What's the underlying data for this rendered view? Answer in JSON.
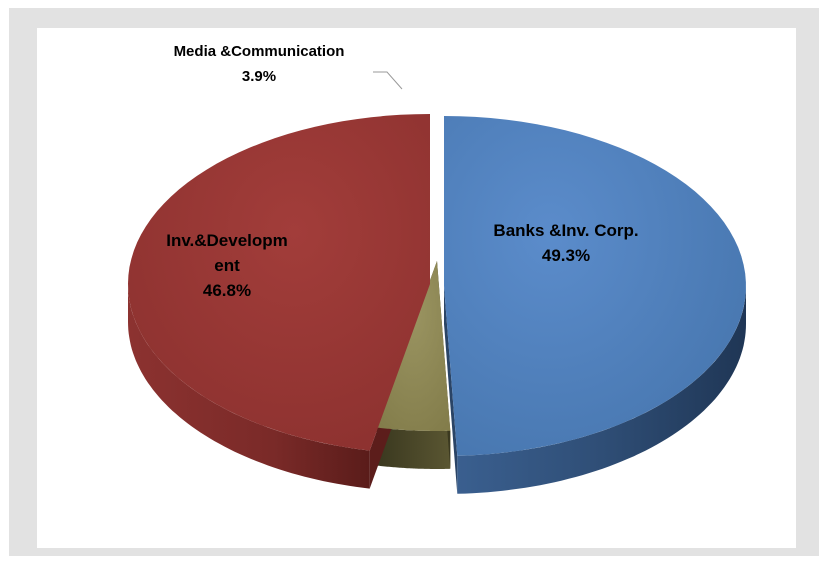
{
  "chart_data": {
    "type": "pie",
    "style": "3d-exploded",
    "title": "",
    "slices": [
      {
        "label": "Banks &Inv. Corp.",
        "value": 49.3,
        "display": "49.3%",
        "color": "#4f81bd"
      },
      {
        "label": "Media &Communication",
        "value": 3.9,
        "display": "3.9%",
        "color": "#8c8651"
      },
      {
        "label": "Inv.&Development",
        "label_lines": [
          "Inv.&Developm",
          "ent"
        ],
        "value": 46.8,
        "display": "46.8%",
        "color": "#953735"
      }
    ],
    "legend": "none"
  }
}
